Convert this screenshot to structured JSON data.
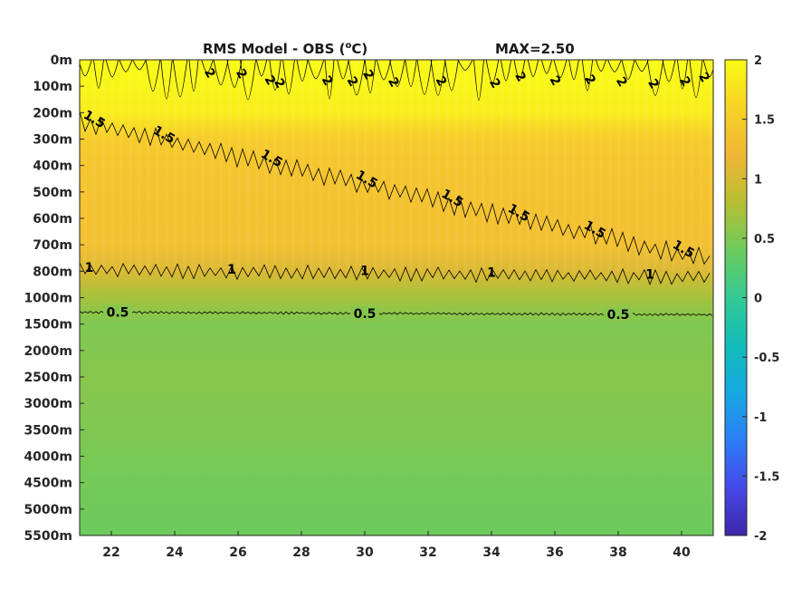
{
  "chart_data": {
    "type": "heatmap",
    "title": "RMS Model - OBS (",
    "title_unit": "o",
    "title_unit_suffix": "C)",
    "max_label": "MAX=2.50",
    "x_ticks": [
      22,
      24,
      26,
      28,
      30,
      32,
      34,
      36,
      38,
      40
    ],
    "x_range": [
      21,
      41
    ],
    "depth_levels": [
      "0m",
      "100m",
      "200m",
      "300m",
      "400m",
      "500m",
      "600m",
      "700m",
      "800m",
      "1000m",
      "1500m",
      "2000m",
      "2500m",
      "3000m",
      "3500m",
      "4000m",
      "4500m",
      "5000m",
      "5500m"
    ],
    "depth_profile": [
      2.0,
      1.95,
      1.85,
      1.5,
      1.42,
      1.38,
      1.36,
      1.34,
      1.05,
      0.7,
      0.5,
      0.52,
      0.55,
      0.52,
      0.5,
      0.47,
      0.44,
      0.42,
      0.4
    ],
    "colorbar_ticks": [
      "2",
      "1.5",
      "1",
      "0.5",
      "0",
      "-0.5",
      "-1",
      "-1.5",
      "-2"
    ],
    "colorbar_range": [
      -2,
      2
    ],
    "colormap": [
      "#3e26a8",
      "#4748e8",
      "#2c7df6",
      "#17a9e2",
      "#12bcb7",
      "#34c994",
      "#6ccb5d",
      "#b7bf32",
      "#f1b635",
      "#f8d226",
      "#f9fb15"
    ],
    "contours": [
      {
        "level": 2,
        "labels": [
          "2",
          "2",
          "2",
          "2",
          "2",
          "2",
          "2",
          "2",
          "2",
          "2",
          "2",
          "2",
          "2",
          "2",
          "2",
          "2",
          "2"
        ],
        "label_x": [
          25.0,
          26.0,
          26.9,
          28.7,
          30.0,
          30.8,
          32.3,
          34.0,
          34.8,
          35.9,
          37.0,
          38.0,
          39.0,
          40.0,
          40.6,
          27.2,
          29.5
        ]
      },
      {
        "level": 1.5,
        "labels": [
          "1.5",
          "1.5",
          "1.5",
          "1.5",
          "1.5",
          "1.5",
          "1.5",
          "1.5"
        ],
        "label_x": [
          21.4,
          23.6,
          27.0,
          30.0,
          32.7,
          34.8,
          37.2,
          40.0
        ]
      },
      {
        "level": 1,
        "labels": [
          "1",
          "1",
          "1",
          "1",
          "1"
        ],
        "label_x": [
          21.3,
          25.8,
          30.0,
          34.0,
          39.0
        ]
      },
      {
        "level": 0.5,
        "labels": [
          "0.5",
          "0.5",
          "0.5"
        ],
        "label_x": [
          22.2,
          30.0,
          38.0
        ]
      }
    ]
  }
}
